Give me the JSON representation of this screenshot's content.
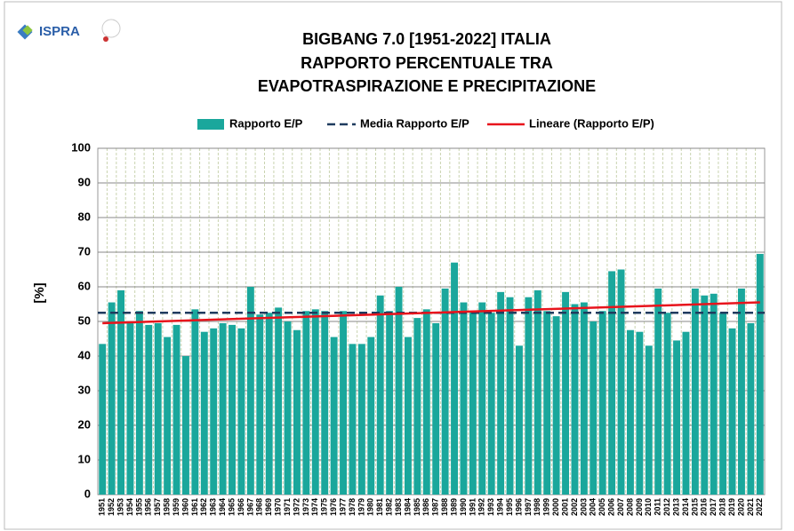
{
  "header": {
    "logo": "ISPRA"
  },
  "chart_data": {
    "type": "bar",
    "title": [
      "BIGBANG 7.0 [1951-2022] ITALIA",
      "RAPPORTO PERCENTUALE TRA",
      "EVAPOTRASPIRAZIONE E PRECIPITAZIONE"
    ],
    "ylabel": "[%]",
    "categories": [
      "1951",
      "1952",
      "1953",
      "1954",
      "1955",
      "1956",
      "1957",
      "1958",
      "1959",
      "1960",
      "1961",
      "1962",
      "1963",
      "1964",
      "1965",
      "1966",
      "1967",
      "1968",
      "1969",
      "1970",
      "1971",
      "1972",
      "1973",
      "1974",
      "1975",
      "1976",
      "1977",
      "1978",
      "1979",
      "1980",
      "1981",
      "1982",
      "1983",
      "1984",
      "1985",
      "1986",
      "1987",
      "1988",
      "1989",
      "1990",
      "1991",
      "1992",
      "1993",
      "1994",
      "1995",
      "1996",
      "1997",
      "1998",
      "1999",
      "2000",
      "2001",
      "2002",
      "2003",
      "2004",
      "2005",
      "2006",
      "2007",
      "2008",
      "2009",
      "2010",
      "2011",
      "2012",
      "2013",
      "2014",
      "2015",
      "2016",
      "2017",
      "2018",
      "2019",
      "2020",
      "2021",
      "2022"
    ],
    "series": [
      {
        "name": "Rapporto E/P",
        "color": "#1aa79c",
        "values": [
          43.5,
          55.5,
          59,
          50,
          53,
          49,
          49.5,
          45.5,
          49,
          40,
          53.5,
          47,
          48,
          49.5,
          49,
          48,
          60,
          52,
          52.5,
          54,
          50,
          47.5,
          53,
          53.5,
          53,
          45.5,
          53,
          43.5,
          43.5,
          45.5,
          57.5,
          53,
          60,
          45.5,
          51,
          53.5,
          49.5,
          59.5,
          67,
          55.5,
          53,
          55.5,
          52.5,
          58.5,
          57,
          43,
          57,
          59,
          53,
          51.5,
          58.5,
          55,
          55.5,
          50,
          53,
          64.5,
          65,
          47.5,
          47,
          43,
          59.5,
          52.5,
          44.5,
          47,
          59.5,
          57.5,
          58,
          52.5,
          48,
          59.5,
          49.5,
          69.5
        ]
      },
      {
        "name": "Media Rapporto E/P",
        "color": "#1f3b5e",
        "value": 52.5
      },
      {
        "name": "Lineare (Rapporto E/P)",
        "color": "#e8141c",
        "start": 49.5,
        "end": 55.5
      }
    ],
    "ylim": [
      0,
      100
    ],
    "yticks": [
      0,
      10,
      20,
      30,
      40,
      50,
      60,
      70,
      80,
      90,
      100
    ],
    "grid": true,
    "legend": "top"
  }
}
